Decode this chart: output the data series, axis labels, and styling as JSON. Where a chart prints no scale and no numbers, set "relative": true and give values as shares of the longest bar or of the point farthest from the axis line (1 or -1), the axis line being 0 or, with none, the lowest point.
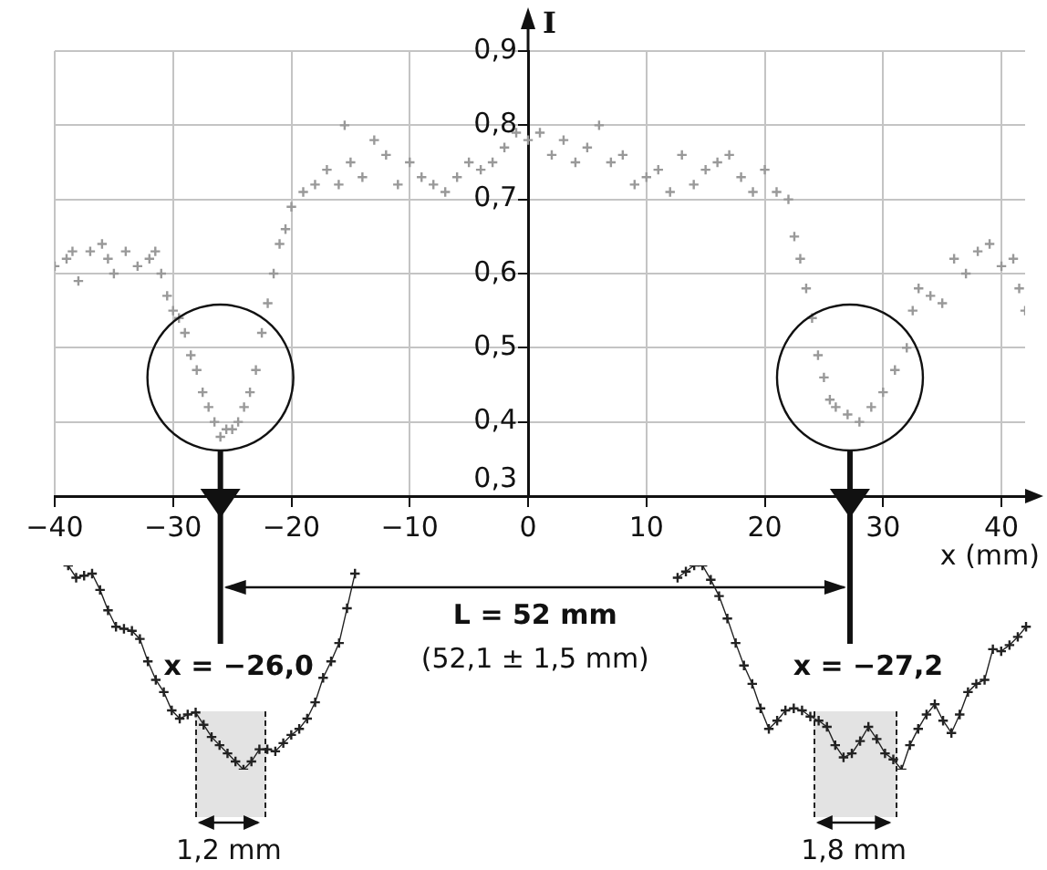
{
  "chart_data": [
    {
      "type": "scatter",
      "xlabel": "x (mm)",
      "ylabel": "I",
      "color": "#999999",
      "marker": "cross",
      "grid": true,
      "legend": false,
      "x": [
        -40,
        -39,
        -38.5,
        -38,
        -37,
        -36,
        -35.5,
        -35,
        -34,
        -33,
        -32,
        -31.5,
        -31,
        -30.5,
        -30,
        -29.5,
        -29,
        -28.5,
        -28,
        -27.5,
        -27,
        -26.5,
        -26,
        -25.5,
        -25,
        -24.5,
        -24,
        -23.5,
        -23,
        -22.5,
        -22,
        -21.5,
        -21,
        -20.5,
        -20,
        -19,
        -18,
        -17,
        -16,
        -15.5,
        -15,
        -14,
        -13,
        -12,
        -11,
        -10,
        -9,
        -8,
        -7,
        -6,
        -5,
        -4,
        -3,
        -2,
        -1,
        0,
        1,
        2,
        3,
        4,
        5,
        6,
        7,
        8,
        9,
        10,
        11,
        12,
        13,
        14,
        15,
        16,
        17,
        18,
        19,
        20,
        21,
        22,
        22.5,
        23,
        23.5,
        24,
        24.5,
        25,
        25.5,
        26,
        27,
        28,
        29,
        30,
        31,
        32,
        32.5,
        33,
        34,
        35,
        36,
        37,
        38,
        39,
        40,
        41,
        41.5,
        42
      ],
      "values": [
        0.61,
        0.62,
        0.63,
        0.59,
        0.63,
        0.64,
        0.62,
        0.6,
        0.63,
        0.61,
        0.62,
        0.63,
        0.6,
        0.57,
        0.55,
        0.54,
        0.52,
        0.49,
        0.47,
        0.44,
        0.42,
        0.4,
        0.38,
        0.39,
        0.39,
        0.4,
        0.42,
        0.44,
        0.47,
        0.52,
        0.56,
        0.6,
        0.64,
        0.66,
        0.69,
        0.71,
        0.72,
        0.74,
        0.72,
        0.8,
        0.75,
        0.73,
        0.78,
        0.76,
        0.72,
        0.75,
        0.73,
        0.72,
        0.71,
        0.73,
        0.75,
        0.74,
        0.75,
        0.77,
        0.79,
        0.78,
        0.79,
        0.76,
        0.78,
        0.75,
        0.77,
        0.8,
        0.75,
        0.76,
        0.72,
        0.73,
        0.74,
        0.71,
        0.76,
        0.72,
        0.74,
        0.75,
        0.76,
        0.73,
        0.71,
        0.74,
        0.71,
        0.7,
        0.65,
        0.62,
        0.58,
        0.54,
        0.49,
        0.46,
        0.43,
        0.42,
        0.41,
        0.4,
        0.42,
        0.44,
        0.47,
        0.5,
        0.55,
        0.58,
        0.57,
        0.56,
        0.62,
        0.6,
        0.63,
        0.64,
        0.61,
        0.62,
        0.58,
        0.55
      ],
      "xlim": [
        -40,
        42
      ],
      "xticks": [
        {
          "value": -40,
          "label": "−40"
        },
        {
          "value": -30,
          "label": "−30"
        },
        {
          "value": -20,
          "label": "−20"
        },
        {
          "value": -10,
          "label": "−10"
        },
        0,
        10,
        20,
        30,
        40
      ],
      "ylim": [
        0.3,
        0.9
      ],
      "yticks": [
        {
          "value": 0.3,
          "label": "0,3"
        },
        {
          "value": 0.4,
          "label": "0,4"
        },
        {
          "value": 0.5,
          "label": "0,5"
        },
        {
          "value": 0.6,
          "label": "0,6"
        },
        {
          "value": 0.7,
          "label": "0,7"
        },
        {
          "value": 0.8,
          "label": "0,8"
        },
        {
          "value": 0.9,
          "label": "0,9"
        }
      ],
      "ref_lines": [
        {
          "axis": "x",
          "value": -26,
          "color": "#111111"
        },
        {
          "axis": "x",
          "value": 27.2,
          "color": "#111111"
        }
      ],
      "annotations": [
        "x = −26,0",
        "x = −27,2",
        "L = 52 mm",
        "(52,1 ± 1,5 mm)"
      ]
    },
    {
      "type": "line",
      "relative": true,
      "color": "#222222",
      "marker": "cross",
      "categories": [
        null,
        null,
        null,
        null,
        null,
        null,
        null,
        null,
        null,
        null,
        null,
        null,
        null,
        null,
        null,
        null,
        null,
        null,
        null,
        null,
        null,
        null,
        null,
        null,
        null,
        null,
        null,
        null,
        null,
        null,
        null,
        null,
        null,
        null,
        null,
        null,
        null
      ],
      "values": [
        1.0,
        0.94,
        0.95,
        0.96,
        0.88,
        0.78,
        0.7,
        0.69,
        0.68,
        0.64,
        0.53,
        0.44,
        0.38,
        0.29,
        0.25,
        0.27,
        0.28,
        0.22,
        0.16,
        0.12,
        0.08,
        0.04,
        0.0,
        0.04,
        0.1,
        0.1,
        0.09,
        0.13,
        0.17,
        0.2,
        0.25,
        0.33,
        0.45,
        0.53,
        0.62,
        0.79,
        0.96
      ],
      "annotations": [
        "1,2 mm"
      ]
    },
    {
      "type": "line",
      "relative": true,
      "color": "#222222",
      "marker": "cross",
      "categories": [
        null,
        null,
        null,
        null,
        null,
        null,
        null,
        null,
        null,
        null,
        null,
        null,
        null,
        null,
        null,
        null,
        null,
        null,
        null,
        null,
        null,
        null,
        null,
        null,
        null,
        null,
        null,
        null,
        null,
        null,
        null,
        null,
        null,
        null,
        null,
        null,
        null,
        null,
        null,
        null,
        null,
        null,
        null
      ],
      "values": [
        0.94,
        0.97,
        1.0,
        1.0,
        0.93,
        0.85,
        0.74,
        0.62,
        0.51,
        0.42,
        0.3,
        0.2,
        0.24,
        0.29,
        0.3,
        0.29,
        0.26,
        0.24,
        0.21,
        0.12,
        0.06,
        0.08,
        0.14,
        0.21,
        0.15,
        0.08,
        0.05,
        0.0,
        0.12,
        0.2,
        0.27,
        0.32,
        0.24,
        0.18,
        0.27,
        0.38,
        0.42,
        0.44,
        0.59,
        0.58,
        0.61,
        0.65,
        0.7
      ],
      "annotations": [
        "1,8 mm"
      ]
    }
  ]
}
